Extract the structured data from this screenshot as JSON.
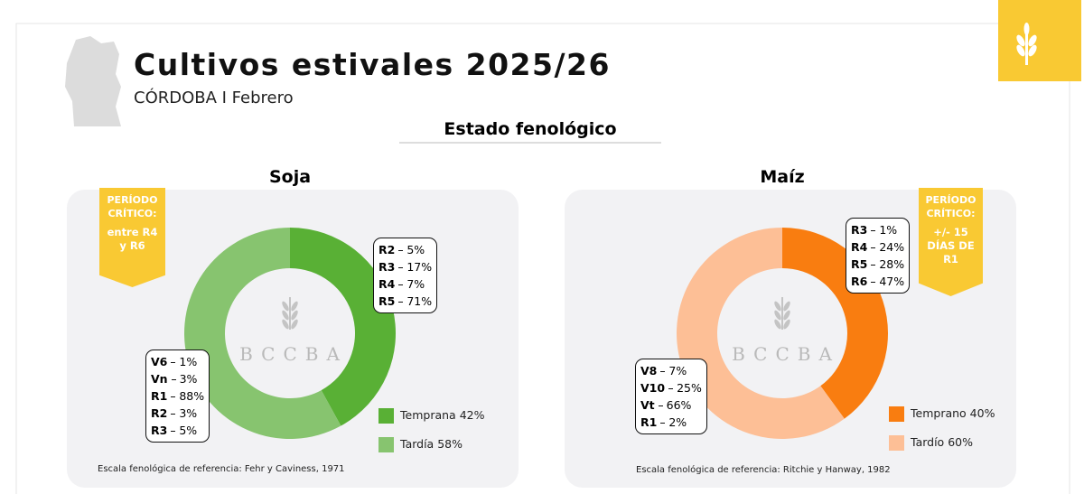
{
  "header": {
    "title": "Cultivos estivales 2025/26",
    "subtitle": "CÓRDOBA I Febrero",
    "section": "Estado fenológico",
    "watermark": "BCCBA"
  },
  "chart_data": [
    {
      "type": "pie",
      "title": "Soja",
      "categories": [
        "Temprana",
        "Tardía"
      ],
      "values": [
        42,
        58
      ],
      "value_labels": [
        "42%",
        "58%"
      ],
      "colors": [
        "#59b035",
        "#87c46f"
      ],
      "stages": [
        {
          "names": [
            "R2",
            "R3",
            "R4",
            "R5"
          ],
          "values": [
            5,
            17,
            7,
            71
          ],
          "value_labels": [
            "5%",
            "17%",
            "7%",
            "71%"
          ]
        },
        {
          "names": [
            "V6",
            "Vn",
            "R1",
            "R2",
            "R3"
          ],
          "values": [
            1,
            3,
            88,
            3,
            5
          ],
          "value_labels": [
            "1%",
            "3%",
            "88%",
            "3%",
            "5%"
          ]
        }
      ],
      "critical_period": {
        "heading": "PERÍODO CRÍTICO:",
        "text": "entre R4 y R6"
      },
      "source": "Escala fenológica de referencia: Fehr y Caviness, 1971"
    },
    {
      "type": "pie",
      "title": "Maíz",
      "categories": [
        "Temprano",
        "Tardío"
      ],
      "values": [
        40,
        60
      ],
      "value_labels": [
        "40%",
        "60%"
      ],
      "colors": [
        "#f97d10",
        "#fdbf96"
      ],
      "stages": [
        {
          "names": [
            "R3",
            "R4",
            "R5",
            "R6"
          ],
          "values": [
            1,
            24,
            28,
            47
          ],
          "value_labels": [
            "1%",
            "24%",
            "28%",
            "47%"
          ]
        },
        {
          "names": [
            "V8",
            "V10",
            "Vt",
            "R1"
          ],
          "values": [
            7,
            25,
            66,
            2
          ],
          "value_labels": [
            "7%",
            "25%",
            "66%",
            "2%"
          ]
        }
      ],
      "critical_period": {
        "heading": "PERÍODO CRÍTICO:",
        "text": "+/- 15 DÍAS DE R1"
      },
      "source": "Escala fenológica de referencia: Ritchie y Hanway, 1982"
    }
  ]
}
